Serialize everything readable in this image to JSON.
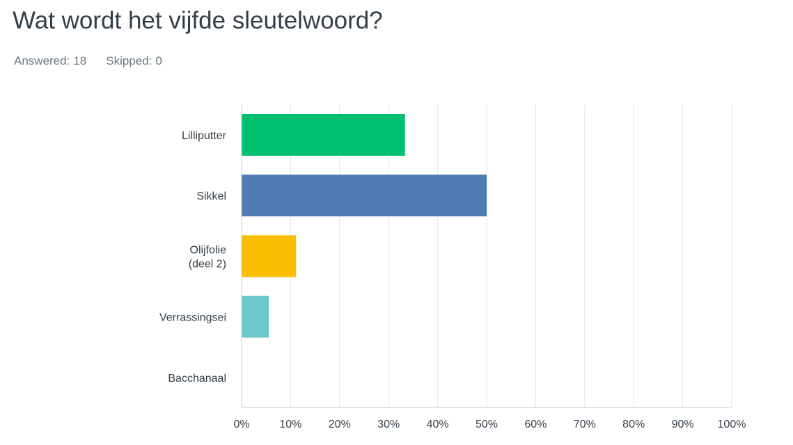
{
  "question": {
    "title": "Wat wordt het vijfde sleutelwoord?"
  },
  "summary": {
    "answered_label": "Answered:",
    "answered_value": "18",
    "skipped_label": "Skipped:",
    "skipped_value": "0"
  },
  "chart_data": {
    "type": "bar",
    "orientation": "horizontal",
    "categories": [
      "Lilliputter",
      "Sikkel",
      "Olijfolie (deel 2)",
      "Verrassingsei",
      "Bacchanaal"
    ],
    "category_label_lines": [
      [
        "Lilliputter"
      ],
      [
        "Sikkel"
      ],
      [
        "Olijfolie",
        "(deel 2)"
      ],
      [
        "Verrassingsei"
      ],
      [
        "Bacchanaal"
      ]
    ],
    "values": [
      33.33,
      50.0,
      11.11,
      5.56,
      0
    ],
    "colors": [
      "#00bf6f",
      "#507cb6",
      "#f9be00",
      "#6bc8cd",
      "#ff8b4f"
    ],
    "xlim": [
      0,
      100
    ],
    "x_ticks": [
      "0%",
      "10%",
      "20%",
      "30%",
      "40%",
      "50%",
      "60%",
      "70%",
      "80%",
      "90%",
      "100%"
    ],
    "grid": true,
    "gridline_color": "#e5e5e5",
    "axis_color": "#cccccc",
    "title": "",
    "xlabel": "",
    "ylabel": ""
  }
}
